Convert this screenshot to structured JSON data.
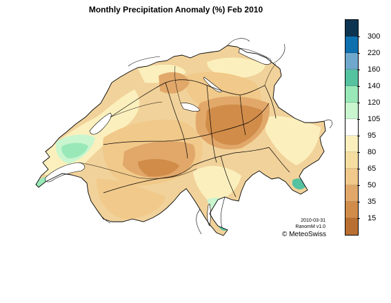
{
  "title": "Monthly Precipitation Anomaly (%) Feb 2010",
  "legend": {
    "ticks": [
      "300",
      "220",
      "160",
      "140",
      "120",
      "105",
      "95",
      "80",
      "65",
      "50",
      "35",
      "15"
    ],
    "colors": [
      "#0d3552",
      "#0f70b0",
      "#6fa8cc",
      "#55c2a0",
      "#99e8b8",
      "#c9f5cf",
      "#ffffff",
      "#fbf0bd",
      "#f5dea0",
      "#f1c98a",
      "#e1a86a",
      "#d18c49",
      "#b96f32"
    ]
  },
  "stamp": {
    "date": "2010-03-31",
    "product": "RanomM v1.0"
  },
  "copyright": "© MeteoSwiss"
}
